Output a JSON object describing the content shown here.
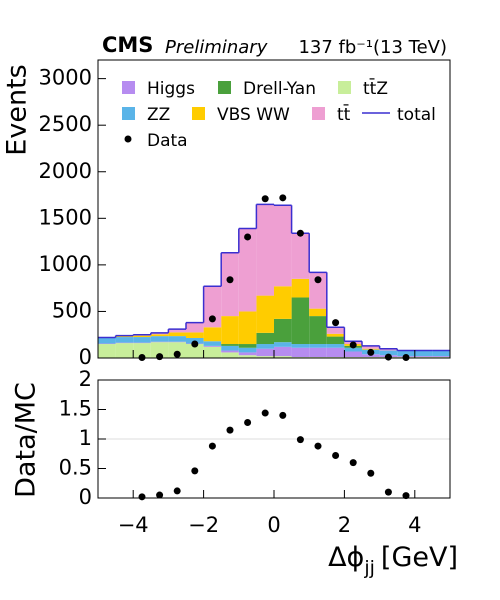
{
  "chart_data": [
    {
      "type": "stacked_histogram",
      "experiment": "CMS",
      "status": "Preliminary",
      "lumi": "137 fb⁻¹(13 TeV)",
      "ylabel": "Events",
      "bins": [
        -5,
        -4.5,
        -4,
        -3.5,
        -3,
        -2.5,
        -2,
        -1.5,
        -1,
        -0.5,
        0,
        0.5,
        1,
        1.5,
        2,
        2.5,
        3,
        3.5,
        4,
        4.5,
        5
      ],
      "xlim": [
        -5,
        5
      ],
      "ylim": [
        0,
        3200
      ],
      "yticks": [
        0,
        500,
        1000,
        1500,
        2000,
        2500,
        3000
      ],
      "series": [
        {
          "name": "tt̄Z",
          "color": "#c8ee9a",
          "values": [
            150,
            160,
            160,
            170,
            170,
            150,
            120,
            60,
            30,
            20,
            20,
            10,
            10,
            10,
            10,
            10,
            10,
            10,
            10,
            10
          ]
        },
        {
          "name": "Higgs",
          "color": "#b68cf0",
          "values": [
            5,
            5,
            5,
            5,
            5,
            5,
            10,
            20,
            30,
            80,
            100,
            100,
            100,
            100,
            60,
            30,
            20,
            10,
            10,
            10
          ]
        },
        {
          "name": "ZZ",
          "color": "#5ab4e8",
          "values": [
            60,
            60,
            60,
            60,
            60,
            60,
            50,
            50,
            50,
            50,
            50,
            40,
            40,
            40,
            40,
            50,
            50,
            60,
            60,
            60
          ]
        },
        {
          "name": "Drell-Yan",
          "color": "#4aa03c",
          "values": [
            0,
            0,
            0,
            0,
            0,
            0,
            0,
            20,
            40,
            120,
            250,
            500,
            300,
            80,
            20,
            0,
            0,
            0,
            0,
            0
          ]
        },
        {
          "name": "VBS WW",
          "color": "#ffcc00",
          "values": [
            5,
            10,
            15,
            20,
            40,
            60,
            150,
            300,
            350,
            400,
            350,
            200,
            80,
            30,
            20,
            10,
            0,
            0,
            0,
            0
          ]
        },
        {
          "name": "tt̄",
          "color": "#ee9fd2",
          "values": [
            0,
            5,
            10,
            15,
            35,
            105,
            440,
            680,
            890,
            980,
            870,
            490,
            390,
            70,
            30,
            30,
            20,
            0,
            0,
            0
          ]
        }
      ],
      "total": {
        "name": "total",
        "color": "#3a2fd0",
        "values": [
          220,
          240,
          250,
          270,
          310,
          380,
          770,
          1130,
          1390,
          1650,
          1640,
          1340,
          920,
          330,
          180,
          130,
          100,
          80,
          80,
          80
        ]
      },
      "data": {
        "name": "Data",
        "color": "#000000",
        "x": [
          -3.75,
          -3.25,
          -2.75,
          -2.25,
          -1.75,
          -1.25,
          -0.75,
          -0.25,
          0.25,
          0.75,
          1.25,
          1.75,
          2.25,
          2.75,
          3.25,
          3.75
        ],
        "values": [
          5,
          15,
          40,
          150,
          420,
          840,
          1300,
          1710,
          1720,
          1340,
          840,
          380,
          140,
          60,
          10,
          5
        ]
      }
    },
    {
      "type": "scatter",
      "ylabel": "Data/MC",
      "xlabel": "Δϕ",
      "xlabel_sub": "jj",
      "xlabel_unit": "[GeV]",
      "xlim": [
        -5,
        5
      ],
      "ylim": [
        0,
        2
      ],
      "xticks": [
        {
          "value": -4,
          "label": "−4"
        },
        {
          "value": -2,
          "label": "−2"
        },
        0,
        2,
        4
      ],
      "yticks": [
        0,
        0.5,
        1,
        1.5,
        2
      ],
      "hline": 1,
      "color": "#000000",
      "x": [
        -3.75,
        -3.25,
        -2.75,
        -2.25,
        -1.75,
        -1.25,
        -0.75,
        -0.25,
        0.25,
        0.75,
        1.25,
        1.75,
        2.25,
        2.75,
        3.25,
        3.75
      ],
      "values": [
        0.02,
        0.05,
        0.12,
        0.46,
        0.88,
        1.15,
        1.28,
        1.44,
        1.4,
        0.99,
        0.88,
        0.72,
        0.6,
        0.42,
        0.1,
        0.04
      ]
    }
  ]
}
